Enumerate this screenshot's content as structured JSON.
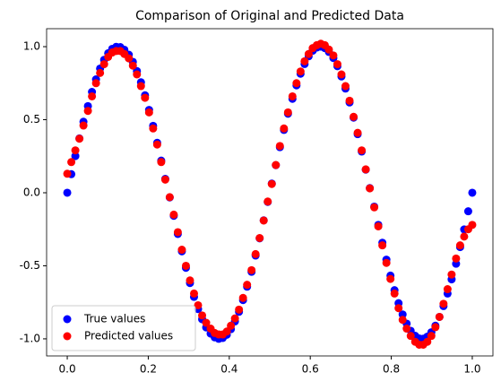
{
  "chart_data": {
    "type": "scatter",
    "title": "Comparison of Original and Predicted Data",
    "x": [
      0,
      0.01,
      0.02,
      0.03,
      0.04,
      0.051,
      0.061,
      0.071,
      0.081,
      0.091,
      0.101,
      0.111,
      0.121,
      0.131,
      0.141,
      0.152,
      0.162,
      0.172,
      0.182,
      0.192,
      0.202,
      0.212,
      0.222,
      0.232,
      0.242,
      0.253,
      0.263,
      0.273,
      0.283,
      0.293,
      0.303,
      0.313,
      0.323,
      0.333,
      0.343,
      0.354,
      0.364,
      0.374,
      0.384,
      0.394,
      0.404,
      0.414,
      0.424,
      0.434,
      0.444,
      0.455,
      0.465,
      0.475,
      0.485,
      0.495,
      0.505,
      0.515,
      0.525,
      0.535,
      0.545,
      0.556,
      0.566,
      0.576,
      0.586,
      0.596,
      0.606,
      0.616,
      0.626,
      0.636,
      0.646,
      0.657,
      0.667,
      0.677,
      0.687,
      0.697,
      0.707,
      0.717,
      0.727,
      0.737,
      0.747,
      0.758,
      0.768,
      0.778,
      0.788,
      0.798,
      0.808,
      0.818,
      0.828,
      0.838,
      0.848,
      0.859,
      0.869,
      0.879,
      0.889,
      0.899,
      0.909,
      0.919,
      0.929,
      0.939,
      0.949,
      0.96,
      0.97,
      0.98,
      0.99,
      1.0
    ],
    "series": [
      {
        "name": "True values",
        "color": "#0000ff",
        "values": [
          0,
          0.127,
          0.251,
          0.372,
          0.486,
          0.593,
          0.69,
          0.776,
          0.85,
          0.91,
          0.955,
          0.985,
          0.999,
          0.997,
          0.979,
          0.945,
          0.896,
          0.833,
          0.756,
          0.667,
          0.567,
          0.458,
          0.342,
          0.22,
          0.095,
          -0.032,
          -0.158,
          -0.282,
          -0.401,
          -0.514,
          -0.618,
          -0.713,
          -0.796,
          -0.866,
          -0.922,
          -0.964,
          -0.99,
          -1.0,
          -0.994,
          -0.972,
          -0.934,
          -0.881,
          -0.815,
          -0.735,
          -0.643,
          -0.541,
          -0.43,
          -0.312,
          -0.189,
          -0.063,
          0.063,
          0.189,
          0.312,
          0.43,
          0.541,
          0.643,
          0.735,
          0.815,
          0.881,
          0.934,
          0.972,
          0.994,
          1.0,
          0.99,
          0.964,
          0.922,
          0.866,
          0.796,
          0.713,
          0.618,
          0.514,
          0.401,
          0.282,
          0.158,
          0.032,
          -0.095,
          -0.22,
          -0.342,
          -0.458,
          -0.567,
          -0.667,
          -0.756,
          -0.833,
          -0.896,
          -0.945,
          -0.979,
          -0.997,
          -0.999,
          -0.985,
          -0.955,
          -0.91,
          -0.85,
          -0.776,
          -0.69,
          -0.593,
          -0.486,
          -0.372,
          -0.251,
          -0.127,
          0
        ]
      },
      {
        "name": "Predicted values",
        "color": "#ff0000",
        "values": [
          0.13,
          0.21,
          0.29,
          0.37,
          0.46,
          0.56,
          0.66,
          0.75,
          0.82,
          0.88,
          0.93,
          0.96,
          0.97,
          0.97,
          0.95,
          0.92,
          0.87,
          0.81,
          0.73,
          0.65,
          0.55,
          0.44,
          0.33,
          0.21,
          0.09,
          -0.03,
          -0.15,
          -0.27,
          -0.39,
          -0.5,
          -0.6,
          -0.69,
          -0.77,
          -0.84,
          -0.89,
          -0.93,
          -0.96,
          -0.97,
          -0.97,
          -0.95,
          -0.91,
          -0.86,
          -0.8,
          -0.72,
          -0.63,
          -0.53,
          -0.42,
          -0.31,
          -0.19,
          -0.06,
          0.06,
          0.19,
          0.32,
          0.44,
          0.55,
          0.66,
          0.75,
          0.83,
          0.9,
          0.95,
          0.99,
          1.01,
          1.02,
          1.01,
          0.98,
          0.94,
          0.88,
          0.81,
          0.73,
          0.63,
          0.52,
          0.41,
          0.29,
          0.16,
          0.03,
          -0.1,
          -0.23,
          -0.36,
          -0.48,
          -0.59,
          -0.69,
          -0.79,
          -0.87,
          -0.93,
          -0.98,
          -1.02,
          -1.04,
          -1.04,
          -1.02,
          -0.98,
          -0.92,
          -0.85,
          -0.76,
          -0.66,
          -0.56,
          -0.45,
          -0.36,
          -0.3,
          -0.25,
          -0.22
        ]
      }
    ],
    "xlim": [
      -0.051,
      1.051
    ],
    "ylim": [
      -1.117,
      1.123
    ],
    "xticks": [
      {
        "value": 0,
        "label": "0.0"
      },
      0.2,
      0.4,
      0.6,
      0.8,
      {
        "value": 1,
        "label": "1.0"
      }
    ],
    "yticks": [
      {
        "value": -1,
        "label": "-1.0"
      },
      -0.5,
      {
        "value": 0,
        "label": "0.0"
      },
      0.5,
      {
        "value": 1,
        "label": "1.0"
      }
    ],
    "legend": "lower left"
  }
}
